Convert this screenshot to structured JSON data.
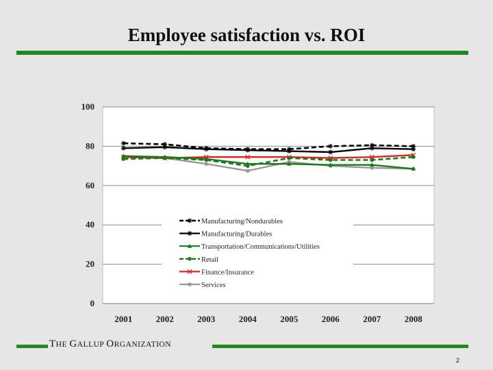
{
  "slide": {
    "title": "Employee satisfaction vs. ROI",
    "footer_org_parts": [
      "T",
      "HE ",
      "G",
      "ALLUP ",
      "O",
      "RGANIZATION"
    ],
    "page_number": "2"
  },
  "colors": {
    "accent_green": "#1e8a1e"
  },
  "chart_data": {
    "type": "line",
    "title": "",
    "xlabel": "",
    "ylabel": "",
    "x": [
      "2001",
      "2002",
      "2003",
      "2004",
      "2005",
      "2006",
      "2007",
      "2008"
    ],
    "ylim": [
      0,
      100
    ],
    "yticks": [
      0,
      20,
      40,
      60,
      80,
      100
    ],
    "legend_position": "center",
    "series": [
      {
        "name": "Manufacturing/Nondurables",
        "color": "#000000",
        "dash": "dashed",
        "marker": "star",
        "values": [
          81.5,
          81,
          79,
          78.5,
          78.5,
          80,
          80.5,
          80
        ]
      },
      {
        "name": "Manufacturing/Durables",
        "color": "#000000",
        "dash": "solid",
        "marker": "star",
        "values": [
          79,
          79.5,
          78.5,
          78,
          77.5,
          77,
          79,
          78.5
        ]
      },
      {
        "name": "Transportation/Communications/Utilities",
        "color": "#1a7a1a",
        "dash": "solid",
        "marker": "triangle",
        "values": [
          75,
          74.5,
          73.5,
          71,
          71,
          70.5,
          70.5,
          68.5
        ]
      },
      {
        "name": "Retail",
        "color": "#1a7a1a",
        "dash": "dashed",
        "marker": "circle",
        "values": [
          73.5,
          74,
          73,
          70,
          74,
          73,
          73,
          74.5
        ]
      },
      {
        "name": "Finance/Insurance",
        "color": "#e02020",
        "dash": "solid",
        "marker": "x",
        "values": [
          74.5,
          74,
          74.5,
          74.5,
          74.5,
          74,
          74.5,
          75.5
        ]
      },
      {
        "name": "Services",
        "color": "#999999",
        "dash": "solid",
        "marker": "circle",
        "values": [
          74.5,
          74,
          71,
          67.5,
          72,
          70,
          69,
          68.5
        ]
      }
    ]
  }
}
